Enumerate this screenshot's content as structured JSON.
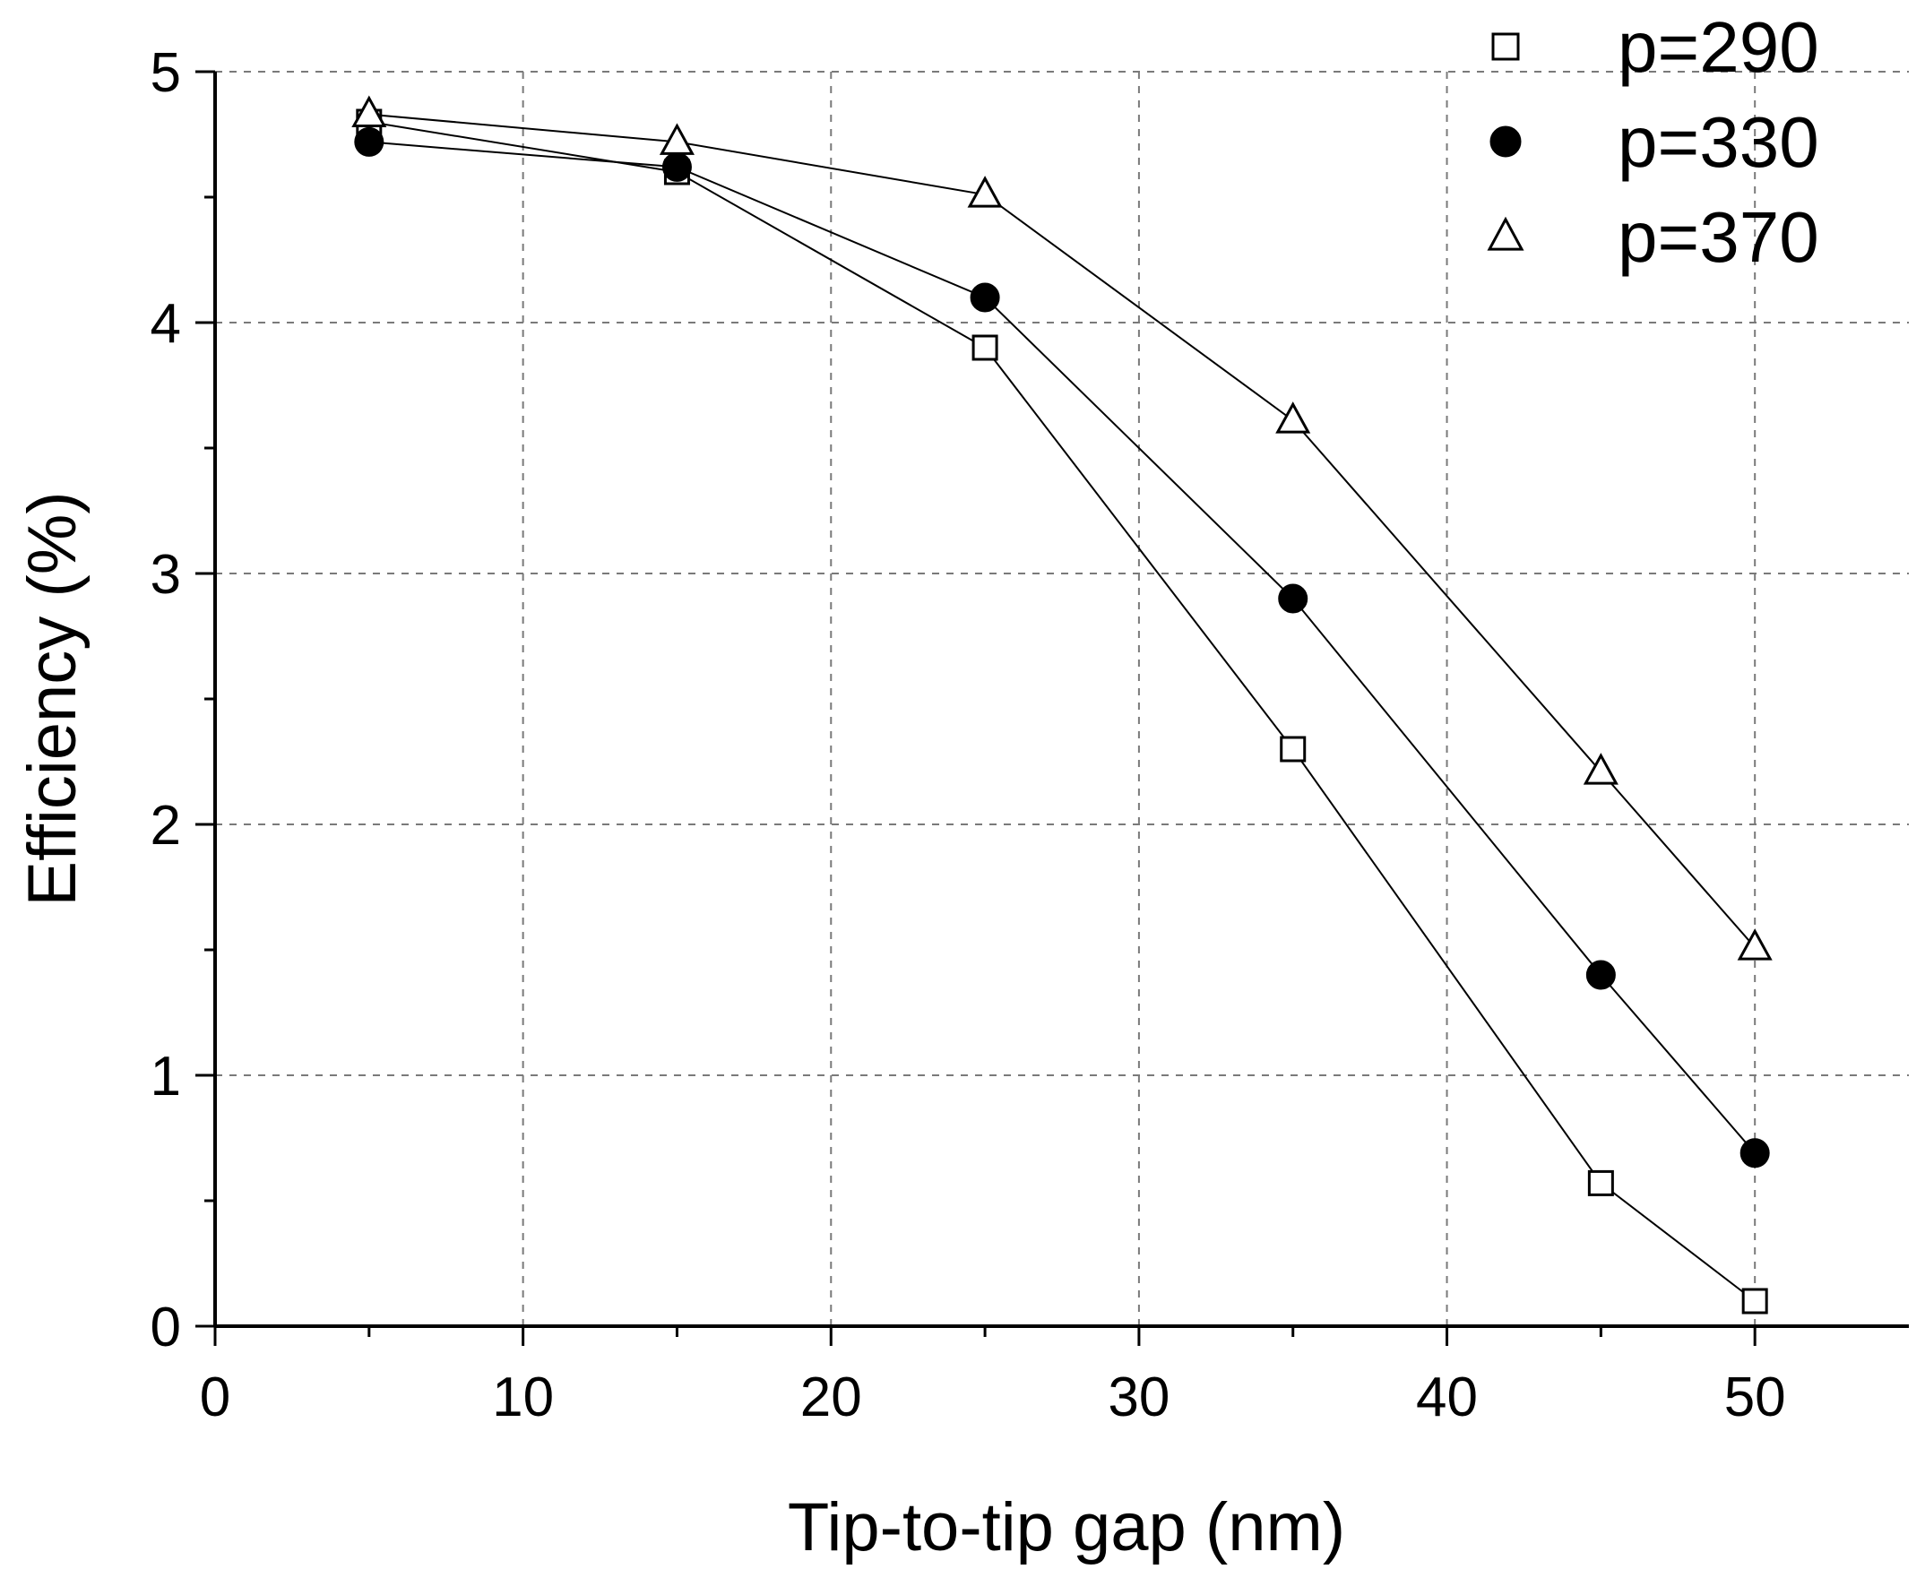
{
  "chart_data": {
    "type": "line",
    "xlabel": "Tip-to-tip gap (nm)",
    "ylabel": "Efficiency (%)",
    "xlim": [
      0,
      55
    ],
    "ylim": [
      0,
      5
    ],
    "xticks": [
      0,
      10,
      20,
      30,
      40,
      50
    ],
    "yticks": [
      0,
      1,
      2,
      3,
      4,
      5
    ],
    "xtick_labels": [
      "0",
      "10",
      "20",
      "30",
      "40",
      "50"
    ],
    "ytick_labels": [
      "0",
      "1",
      "2",
      "3",
      "4",
      "5"
    ],
    "grid": true,
    "legend_position": "top-right",
    "series": [
      {
        "name": "p=290",
        "marker": "open-square",
        "x": [
          5,
          15,
          25,
          35,
          45,
          50
        ],
        "y": [
          4.8,
          4.6,
          3.9,
          2.3,
          0.57,
          0.1
        ]
      },
      {
        "name": "p=330",
        "marker": "filled-circle",
        "x": [
          5,
          15,
          25,
          35,
          45,
          50
        ],
        "y": [
          4.72,
          4.62,
          4.1,
          2.9,
          1.4,
          0.69
        ]
      },
      {
        "name": "p=370",
        "marker": "open-triangle",
        "x": [
          5,
          15,
          25,
          35,
          45,
          50
        ],
        "y": [
          4.83,
          4.72,
          4.51,
          3.61,
          2.21,
          1.51
        ]
      }
    ]
  }
}
